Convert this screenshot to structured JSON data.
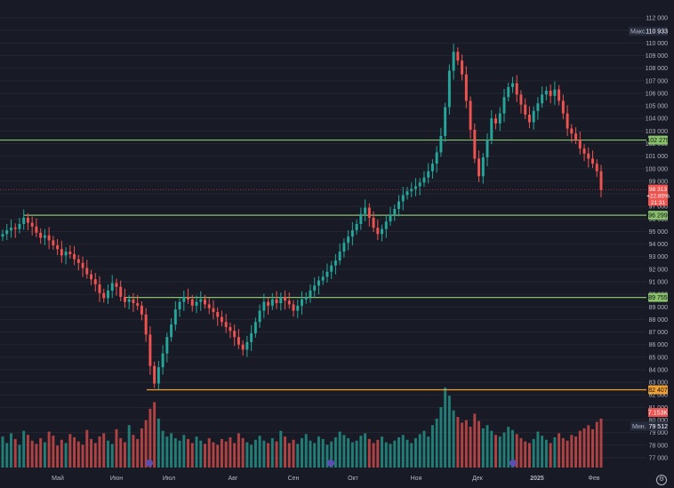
{
  "chart_data": {
    "type": "candlestick",
    "time_labels": [
      "Май",
      "Июн",
      "Июл",
      "Авг",
      "Сен",
      "Окт",
      "Ноя",
      "Дек",
      "2025",
      "Фев"
    ],
    "y_ticks": [
      77000,
      78000,
      79000,
      80000,
      81000,
      82000,
      83000,
      84000,
      85000,
      86000,
      87000,
      88000,
      89000,
      90000,
      91000,
      92000,
      93000,
      94000,
      95000,
      96000,
      97000,
      98000,
      99000,
      100000,
      101000,
      102000,
      103000,
      104000,
      105000,
      106000,
      107000,
      108000,
      109000,
      110000,
      111000,
      112000
    ],
    "y_tick_labels": [
      "77 000",
      "78 000",
      "79 000",
      "80 000",
      "81 000",
      "82 000",
      "83 000",
      "84 000",
      "85 000",
      "86 000",
      "87 000",
      "88 000",
      "89 000",
      "90 000",
      "91 000",
      "92 000",
      "93 000",
      "94 000",
      "95 000",
      "96 000",
      "97 000",
      "98 000",
      "99 000",
      "100 000",
      "101 000",
      "102 000",
      "103 000",
      "104 000",
      "105 000",
      "106 000",
      "107 000",
      "108 000",
      "109 000",
      "110 000",
      "111 000",
      "112 000"
    ],
    "ylim": [
      76500,
      113000
    ],
    "horizontal_levels": [
      {
        "value": 102279,
        "label": "102 279",
        "color": "#89c16b"
      },
      {
        "value": 96299,
        "label": "96 299",
        "color": "#89c16b"
      },
      {
        "value": 89755,
        "label": "89 755",
        "color": "#89c16b"
      },
      {
        "value": 82407,
        "label": "82 407",
        "color": "#f0a030"
      }
    ],
    "max_marker": {
      "label": "Макс.",
      "value": 110933,
      "value_label": "110 933"
    },
    "min_marker": {
      "label": "Мин.",
      "value": 79512,
      "value_label": "79 512"
    },
    "last_price": {
      "value": 98313,
      "value_label": "98 313",
      "change_label": "+22.85%",
      "time_label": "21:31"
    },
    "volume_last": {
      "label": "7.153K"
    },
    "closes": [
      94800,
      95100,
      95300,
      95200,
      95600,
      96100,
      95700,
      95400,
      94900,
      94500,
      94700,
      94300,
      93900,
      93600,
      93100,
      93400,
      93200,
      92800,
      92500,
      92100,
      91600,
      91200,
      90800,
      90100,
      89700,
      90300,
      90900,
      90600,
      89800,
      89400,
      89600,
      89300,
      89100,
      88400,
      86800,
      84300,
      82900,
      84200,
      85300,
      86600,
      87600,
      88800,
      89400,
      89800,
      89600,
      89100,
      89400,
      89600,
      89200,
      88900,
      88600,
      88200,
      87800,
      87400,
      87100,
      86600,
      86000,
      85600,
      86200,
      86900,
      87800,
      88700,
      89400,
      89100,
      89600,
      89300,
      89800,
      89500,
      89200,
      88700,
      89100,
      89600,
      89800,
      90300,
      90700,
      91100,
      91400,
      91800,
      92300,
      92700,
      93400,
      94100,
      94600,
      95100,
      95600,
      96400,
      96900,
      96100,
      95300,
      94800,
      95200,
      95800,
      96300,
      96800,
      97400,
      97900,
      98200,
      98400,
      98600,
      98900,
      99300,
      99800,
      100400,
      101300,
      102600,
      104900,
      107800,
      109300,
      108600,
      107500,
      105400,
      103100,
      100800,
      99400,
      100900,
      102300,
      104000,
      103600,
      104400,
      105700,
      106500,
      106800,
      105900,
      105100,
      104300,
      103700,
      104600,
      105200,
      105900,
      106200,
      105800,
      106300,
      105400,
      104400,
      103200,
      102800,
      102300,
      101600,
      101200,
      100800,
      100400,
      99800,
      98313
    ],
    "opens": [
      94600,
      94800,
      95100,
      95300,
      95200,
      95600,
      96100,
      95700,
      95400,
      94900,
      94500,
      94700,
      94300,
      93900,
      93600,
      93100,
      93400,
      93200,
      92800,
      92500,
      92100,
      91600,
      91200,
      90800,
      90100,
      89700,
      90300,
      90900,
      90600,
      89800,
      89400,
      89600,
      89300,
      89100,
      88400,
      86800,
      84300,
      82900,
      84200,
      85300,
      86600,
      87600,
      88800,
      89400,
      89800,
      89600,
      89100,
      89400,
      89600,
      89200,
      88900,
      88600,
      88200,
      87800,
      87400,
      87100,
      86600,
      86000,
      85600,
      86200,
      86900,
      87800,
      88700,
      89400,
      89100,
      89600,
      89300,
      89800,
      89500,
      89200,
      88700,
      89100,
      89600,
      89800,
      90300,
      90700,
      91100,
      91400,
      91800,
      92300,
      92700,
      93400,
      94100,
      94600,
      95100,
      95600,
      96400,
      96900,
      96100,
      95300,
      94800,
      95200,
      95800,
      96300,
      96800,
      97400,
      97900,
      98200,
      98400,
      98600,
      98900,
      99300,
      99800,
      100400,
      101300,
      102600,
      104900,
      107800,
      109300,
      108600,
      107500,
      105400,
      103100,
      100800,
      99400,
      100900,
      102300,
      104000,
      103600,
      104400,
      105700,
      106500,
      106800,
      105900,
      105100,
      104300,
      103700,
      104600,
      105200,
      105900,
      106200,
      105800,
      106300,
      105400,
      104400,
      103200,
      102800,
      102300,
      101600,
      101200,
      100800,
      100400,
      99800
    ],
    "volumes": [
      38,
      30,
      42,
      35,
      28,
      45,
      40,
      33,
      29,
      36,
      31,
      44,
      39,
      27,
      34,
      30,
      41,
      37,
      32,
      28,
      46,
      35,
      30,
      38,
      42,
      33,
      29,
      47,
      36,
      31,
      52,
      40,
      35,
      48,
      58,
      72,
      80,
      60,
      45,
      38,
      42,
      36,
      33,
      40,
      35,
      30,
      38,
      33,
      29,
      36,
      31,
      28,
      35,
      32,
      37,
      30,
      42,
      36,
      31,
      28,
      34,
      39,
      33,
      30,
      36,
      32,
      45,
      38,
      30,
      34,
      29,
      36,
      41,
      33,
      30,
      38,
      35,
      28,
      32,
      37,
      44,
      40,
      36,
      31,
      33,
      39,
      42,
      35,
      30,
      34,
      38,
      31,
      29,
      33,
      37,
      40,
      34,
      30,
      36,
      41,
      45,
      38,
      52,
      60,
      74,
      98,
      88,
      70,
      62,
      55,
      58,
      50,
      66,
      57,
      48,
      52,
      45,
      40,
      38,
      43,
      50,
      46,
      41,
      36,
      32,
      30,
      35,
      44,
      39,
      34,
      30,
      37,
      42,
      36,
      33,
      40,
      38,
      45,
      48,
      52,
      47,
      56,
      60
    ]
  }
}
